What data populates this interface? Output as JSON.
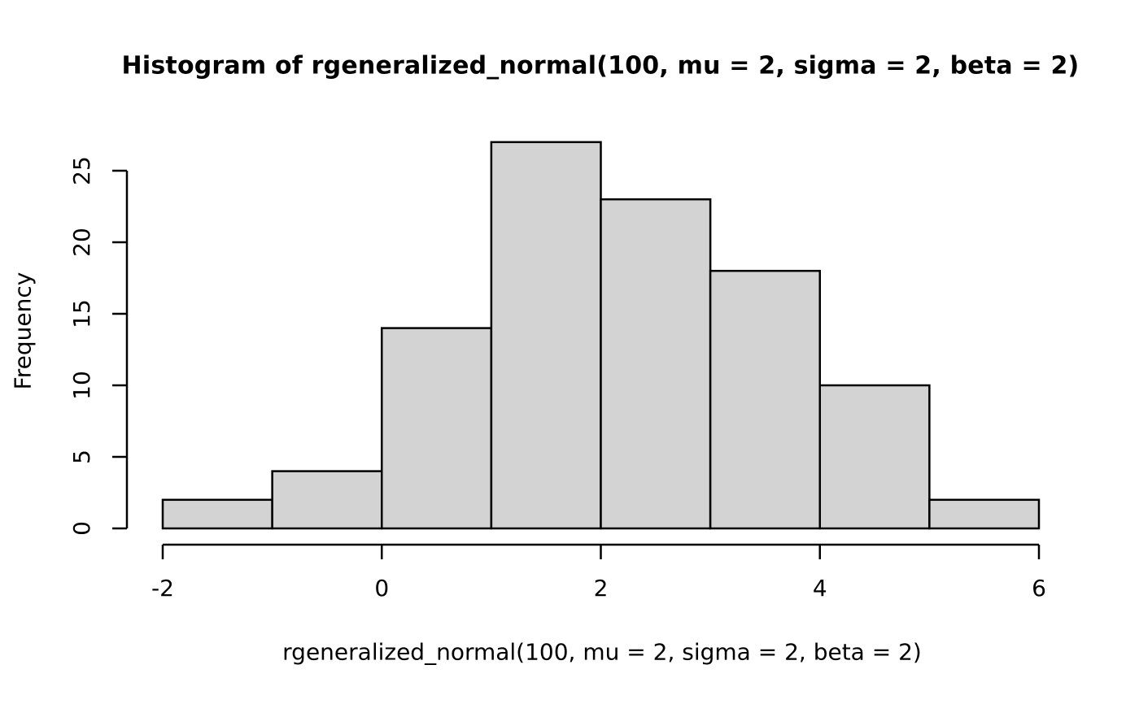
{
  "figure": {
    "background": "#ffffff"
  },
  "chart_data": {
    "type": "bar",
    "subtype": "histogram",
    "title": "Histogram of rgeneralized_normal(100, mu = 2, sigma = 2, beta = 2)",
    "xlabel": "rgeneralized_normal(100, mu = 2, sigma = 2, beta = 2)",
    "ylabel": "Frequency",
    "bin_edges": [
      -2,
      -1,
      0,
      1,
      2,
      3,
      4,
      5,
      6
    ],
    "counts": [
      2,
      4,
      14,
      27,
      23,
      18,
      10,
      2
    ],
    "x_ticks": [
      -2,
      0,
      2,
      4,
      6
    ],
    "y_ticks": [
      0,
      5,
      10,
      15,
      20,
      25
    ],
    "xlim": [
      -2,
      6
    ],
    "ylim": [
      0,
      25
    ],
    "grid": false,
    "legend": "none",
    "colors": {
      "bar_fill": "#d3d3d3",
      "bar_stroke": "#000000",
      "axis": "#000000",
      "text": "#000000"
    }
  }
}
